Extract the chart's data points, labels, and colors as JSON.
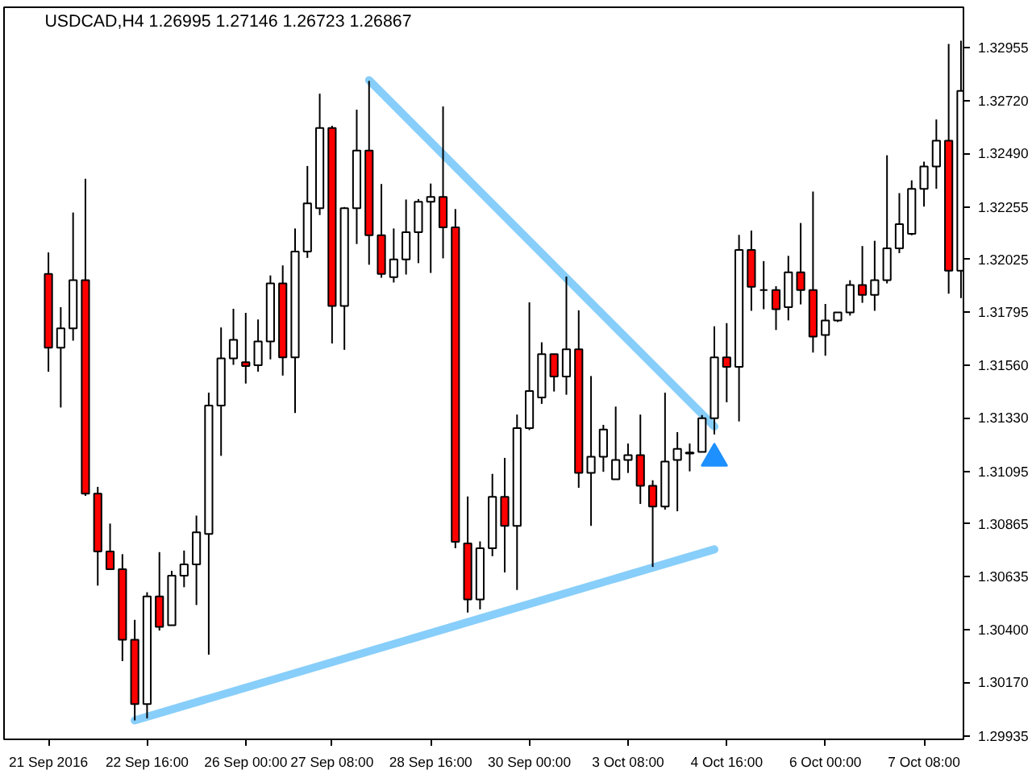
{
  "chart_data": {
    "type": "candlestick",
    "title": "USDCAD,H4 1.26995 1.27146 1.26723 1.26867",
    "categories": [
      "21 Sep 2016",
      null,
      null,
      null,
      null,
      null,
      null,
      null,
      "22 Sep 16:00",
      null,
      null,
      null,
      null,
      null,
      null,
      null,
      "26 Sep 00:00",
      null,
      null,
      null,
      null,
      null,
      null,
      "27 Sep 08:00",
      null,
      null,
      null,
      null,
      null,
      null,
      null,
      "28 Sep 16:00",
      null,
      null,
      null,
      null,
      null,
      null,
      null,
      "30 Sep 00:00",
      null,
      null,
      null,
      null,
      null,
      null,
      null,
      "3 Oct 08:00",
      null,
      null,
      null,
      null,
      null,
      null,
      null,
      "4 Oct 16:00",
      null,
      null,
      null,
      null,
      null,
      null,
      null,
      "6 Oct 00:00",
      null,
      null,
      null,
      null,
      null,
      null,
      null,
      "7 Oct 08:00",
      null,
      null,
      null
    ],
    "ohlc": [
      [
        1.31961,
        1.32055,
        1.31532,
        1.31637
      ],
      [
        1.31637,
        1.31815,
        1.31375,
        1.31722
      ],
      [
        1.31722,
        1.3223,
        1.31668,
        1.31933
      ],
      [
        1.31933,
        1.32378,
        1.30988,
        1.30997
      ],
      [
        1.30997,
        1.31027,
        1.30594,
        1.30744
      ],
      [
        1.30744,
        1.30866,
        1.30666,
        1.30666
      ],
      [
        1.30666,
        1.30732,
        1.30263,
        1.30357
      ],
      [
        1.30357,
        1.30444,
        1.30003,
        1.30075
      ],
      [
        1.30075,
        1.30565,
        1.30012,
        1.30547
      ],
      [
        1.30547,
        1.30741,
        1.30397,
        1.30413
      ],
      [
        1.3042,
        1.30659,
        1.3042,
        1.30638
      ],
      [
        1.30638,
        1.30748,
        1.30587,
        1.30687
      ],
      [
        1.30687,
        1.30901,
        1.30509,
        1.30828
      ],
      [
        1.30821,
        1.3144,
        1.30291,
        1.31384
      ],
      [
        1.31384,
        1.31726,
        1.31163,
        1.3159
      ],
      [
        1.3159,
        1.31808,
        1.31562,
        1.31672
      ],
      [
        1.31574,
        1.3179,
        1.3148,
        1.31557
      ],
      [
        1.3156,
        1.31761,
        1.31532,
        1.31665
      ],
      [
        1.31665,
        1.31954,
        1.31586,
        1.31919
      ],
      [
        1.31919,
        1.31998,
        1.31515,
        1.31595
      ],
      [
        1.31595,
        1.3216,
        1.31351,
        1.32059
      ],
      [
        1.32059,
        1.32434,
        1.32031,
        1.3227
      ],
      [
        1.32249,
        1.32751,
        1.32219,
        1.32601
      ],
      [
        1.32601,
        1.3261,
        1.31656,
        1.3182
      ],
      [
        1.3182,
        1.32254,
        1.31628,
        1.32249
      ],
      [
        1.32249,
        1.32681,
        1.32092,
        1.32502
      ],
      [
        1.32502,
        1.32807,
        1.32001,
        1.3213
      ],
      [
        1.3213,
        1.32355,
        1.31944,
        1.31961
      ],
      [
        1.31947,
        1.3216,
        1.31923,
        1.32024
      ],
      [
        1.32024,
        1.32287,
        1.31958,
        1.32144
      ],
      [
        1.32144,
        1.32289,
        1.32008,
        1.32277
      ],
      [
        1.32277,
        1.32357,
        1.31965,
        1.32298
      ],
      [
        1.32298,
        1.32695,
        1.32029,
        1.32165
      ],
      [
        1.32165,
        1.32245,
        1.30758,
        1.30786
      ],
      [
        1.30779,
        1.30985,
        1.30476,
        1.30533
      ],
      [
        1.30533,
        1.30788,
        1.3049,
        1.30758
      ],
      [
        1.30758,
        1.31084,
        1.30723,
        1.30983
      ],
      [
        1.30983,
        1.31154,
        1.30652,
        1.30856
      ],
      [
        1.30856,
        1.31344,
        1.30575,
        1.31285
      ],
      [
        1.31285,
        1.31836,
        1.31276,
        1.31447
      ],
      [
        1.31419,
        1.31661,
        1.31391,
        1.31609
      ],
      [
        1.31609,
        1.31609,
        1.31445,
        1.31511
      ],
      [
        1.31511,
        1.31949,
        1.31431,
        1.3163
      ],
      [
        1.3163,
        1.31801,
        1.31023,
        1.31088
      ],
      [
        1.31088,
        1.31513,
        1.30856,
        1.31159
      ],
      [
        1.31159,
        1.31299,
        1.31093,
        1.31278
      ],
      [
        1.3106,
        1.31379,
        1.3106,
        1.31145
      ],
      [
        1.31145,
        1.31217,
        1.31088,
        1.31166
      ],
      [
        1.31166,
        1.31344,
        1.30952,
        1.31032
      ],
      [
        1.31032,
        1.31056,
        1.30676,
        1.30941
      ],
      [
        1.30941,
        1.3144,
        1.30927,
        1.31138
      ],
      [
        1.31145,
        1.31267,
        1.3092,
        1.31194
      ],
      [
        1.31173,
        1.31217,
        1.31095,
        1.31178
      ],
      [
        1.3118,
        1.31342,
        1.3118,
        1.31328
      ],
      [
        1.31328,
        1.31731,
        1.31257,
        1.31595
      ],
      [
        1.31595,
        1.31745,
        1.31398,
        1.31553
      ],
      [
        1.31553,
        1.32132,
        1.31314,
        1.32066
      ],
      [
        1.32066,
        1.32151,
        1.31799,
        1.31904
      ],
      [
        1.3189,
        1.32017,
        1.31806,
        1.3189
      ],
      [
        1.3189,
        1.31907,
        1.31715,
        1.31806
      ],
      [
        1.31815,
        1.3204,
        1.31757,
        1.31968
      ],
      [
        1.31968,
        1.32184,
        1.31827,
        1.3189
      ],
      [
        1.3189,
        1.32322,
        1.31616,
        1.31686
      ],
      [
        1.31693,
        1.31829,
        1.31602,
        1.31757
      ],
      [
        1.31757,
        1.31792,
        1.3175,
        1.31792
      ],
      [
        1.31792,
        1.31933,
        1.31778,
        1.31912
      ],
      [
        1.31912,
        1.32083,
        1.31834,
        1.31869
      ],
      [
        1.31869,
        1.32106,
        1.31799,
        1.31933
      ],
      [
        1.31933,
        1.32481,
        1.31919,
        1.32073
      ],
      [
        1.32073,
        1.32315,
        1.32052,
        1.32179
      ],
      [
        1.32137,
        1.32371,
        1.3213,
        1.32334
      ],
      [
        1.32334,
        1.32453,
        1.32256,
        1.32432
      ],
      [
        1.32432,
        1.32638,
        1.32334,
        1.32545
      ],
      [
        1.32545,
        1.32969,
        1.31874,
        1.31975
      ],
      [
        1.31975,
        1.32983,
        1.31855,
        1.32763
      ]
    ],
    "colors": [
      "#ff0000",
      "#ffffff",
      "#ffffff",
      "#ff0000",
      "#ff0000",
      "#ff0000",
      "#ff0000",
      "#ff0000",
      "#ffffff",
      "#ff0000",
      "#ffffff",
      "#ffffff",
      "#ffffff",
      "#ffffff",
      "#ffffff",
      "#ffffff",
      "#ff0000",
      "#ffffff",
      "#ffffff",
      "#ff0000",
      "#ffffff",
      "#ffffff",
      "#ffffff",
      "#ff0000",
      "#ffffff",
      "#ffffff",
      "#ff0000",
      "#ff0000",
      "#ffffff",
      "#ffffff",
      "#ffffff",
      "#ffffff",
      "#ff0000",
      "#ff0000",
      "#ff0000",
      "#ffffff",
      "#ffffff",
      "#ff0000",
      "#ffffff",
      "#ffffff",
      "#ffffff",
      "#ff0000",
      "#ffffff",
      "#ff0000",
      "#ffffff",
      "#ffffff",
      "#ffffff",
      "#ffffff",
      "#ff0000",
      "#ff0000",
      "#ffffff",
      "#ffffff",
      "#ffffff",
      "#ffffff",
      "#ffffff",
      "#ff0000",
      "#ffffff",
      "#ff0000",
      "#000000",
      "#ff0000",
      "#ffffff",
      "#ff0000",
      "#ff0000",
      "#ffffff",
      "#ffffff",
      "#ffffff",
      "#ff0000",
      "#ffffff",
      "#ffffff",
      "#ffffff",
      "#ffffff",
      "#ffffff",
      "#ffffff",
      "#ff0000",
      "#ffffff"
    ],
    "series": [
      {
        "type": "line",
        "values": [
          null,
          null,
          null,
          null,
          null,
          null,
          null,
          1.30003,
          null,
          null,
          null,
          null,
          null,
          null,
          null,
          null,
          null,
          null,
          null,
          null,
          null,
          null,
          null,
          null,
          null,
          null,
          null,
          null,
          null,
          null,
          null,
          null,
          null,
          null,
          null,
          null,
          null,
          null,
          null,
          null,
          null,
          null,
          null,
          null,
          null,
          null,
          null,
          null,
          null,
          null,
          null,
          null,
          null,
          null,
          1.30753,
          null,
          null,
          null,
          null,
          null,
          null,
          null,
          null,
          null,
          null,
          null,
          null,
          null,
          null,
          null,
          null,
          null,
          null,
          null,
          null
        ],
        "color": "#87cefa"
      },
      {
        "type": "line",
        "values": [
          null,
          null,
          null,
          null,
          null,
          null,
          null,
          null,
          null,
          null,
          null,
          null,
          null,
          null,
          null,
          null,
          null,
          null,
          null,
          null,
          null,
          null,
          null,
          null,
          null,
          null,
          1.3281,
          null,
          null,
          null,
          null,
          null,
          null,
          null,
          null,
          null,
          null,
          null,
          null,
          null,
          null,
          null,
          null,
          null,
          null,
          null,
          null,
          null,
          null,
          null,
          null,
          null,
          null,
          null,
          1.31292,
          null,
          null,
          null,
          null,
          null,
          null,
          null,
          null,
          null,
          null,
          null,
          null,
          null,
          null,
          null,
          null,
          null,
          null,
          null,
          null
        ],
        "color": "#87cefa"
      },
      {
        "type": "scatter",
        "marker": "triangle",
        "values": [
          null,
          null,
          null,
          null,
          null,
          null,
          null,
          null,
          null,
          null,
          null,
          null,
          null,
          null,
          null,
          null,
          null,
          null,
          null,
          null,
          null,
          null,
          null,
          null,
          null,
          null,
          null,
          null,
          null,
          null,
          null,
          null,
          null,
          null,
          null,
          null,
          null,
          null,
          null,
          null,
          null,
          null,
          null,
          null,
          null,
          null,
          null,
          null,
          null,
          null,
          null,
          null,
          null,
          null,
          1.31152,
          null,
          null,
          null,
          null,
          null,
          null,
          null,
          null,
          null,
          null,
          null,
          null,
          null,
          null,
          null,
          null,
          null,
          null,
          null,
          null
        ],
        "color": "#1e90ff"
      }
    ],
    "ylim": [
      1.2992,
      1.3313
    ],
    "yticks": [
      1.32955,
      {
        "value": 1.3272,
        "label": "1.32720"
      },
      {
        "value": 1.3249,
        "label": "1.32490"
      },
      1.32255,
      1.32025,
      1.31795,
      {
        "value": 1.3156,
        "label": "1.31560"
      },
      {
        "value": 1.3133,
        "label": "1.31330"
      },
      1.31095,
      1.30865,
      1.30635,
      {
        "value": 1.304,
        "label": "1.30400"
      },
      {
        "value": 1.3017,
        "label": "1.30170"
      },
      1.29935
    ],
    "grid": false
  }
}
